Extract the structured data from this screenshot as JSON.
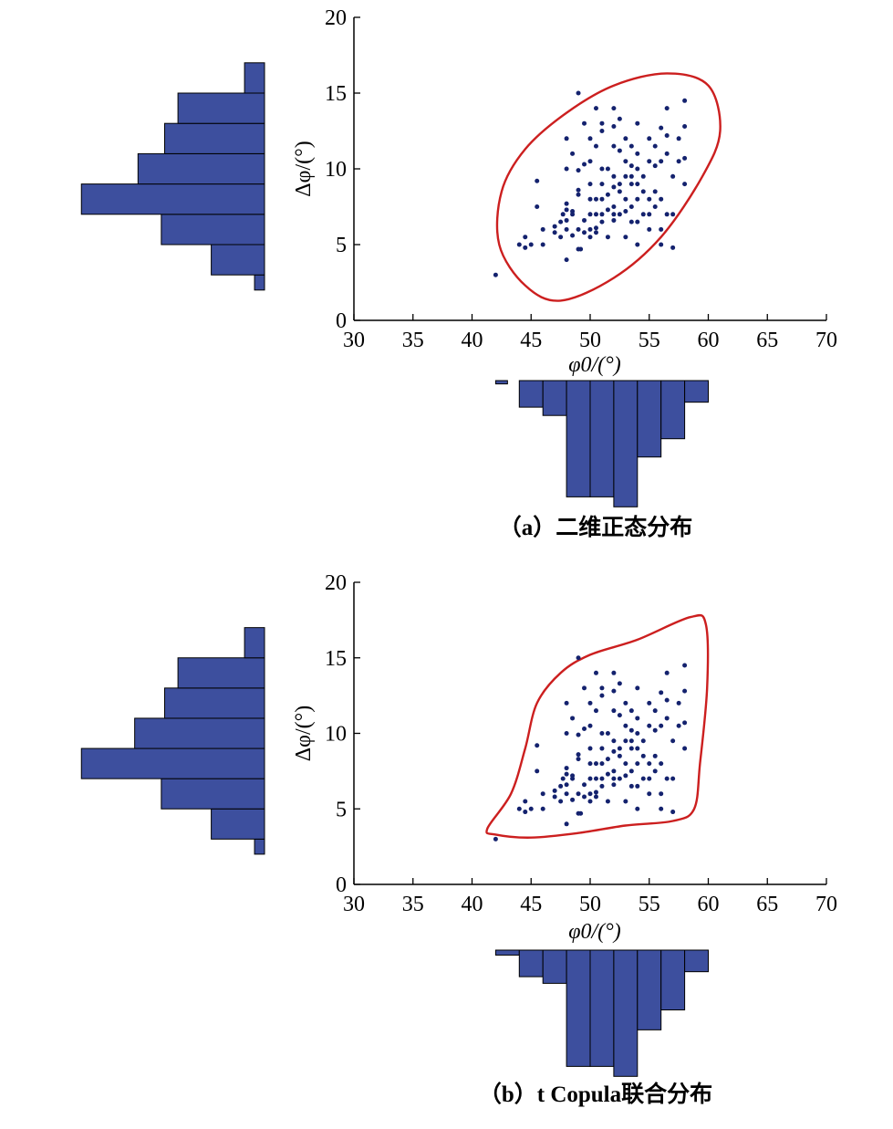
{
  "colors": {
    "bar": "#3d4f9e",
    "point": "#14226e",
    "contour": "#cc1f1f",
    "axis": "#000000"
  },
  "chart_data": [
    {
      "type": "scatter",
      "caption": "（a）二维正态分布",
      "xlabel": "φ0/(°)",
      "ylabel": "Δφ/(°)",
      "xlim": [
        30,
        70
      ],
      "ylim": [
        0,
        20
      ],
      "xticks": [
        "30",
        "35",
        "40",
        "45",
        "50",
        "55",
        "60",
        "65",
        "70"
      ],
      "yticks": [
        "0",
        "5",
        "10",
        "15",
        "20"
      ],
      "contour": "ellipse",
      "contour_points": [
        [
          47.5,
          1.3
        ],
        [
          52,
          2.8
        ],
        [
          56,
          5.5
        ],
        [
          59.5,
          9.5
        ],
        [
          61,
          12.5
        ],
        [
          60,
          15.5
        ],
        [
          56.5,
          16.3
        ],
        [
          52,
          15.5
        ],
        [
          48,
          13.7
        ],
        [
          44.5,
          11.3
        ],
        [
          42.5,
          8.5
        ],
        [
          42.3,
          5.0
        ],
        [
          44.5,
          2.3
        ]
      ],
      "x_hist": {
        "bins": [
          [
            42,
            43,
            0.2
          ],
          [
            44,
            46,
            1.6
          ],
          [
            46,
            48,
            2.1
          ],
          [
            48,
            50,
            7.0
          ],
          [
            50,
            52,
            7.0
          ],
          [
            52,
            54,
            7.6
          ],
          [
            54,
            56,
            4.6
          ],
          [
            56,
            58,
            3.5
          ],
          [
            58,
            60,
            1.3
          ]
        ]
      },
      "y_hist": {
        "bins": [
          [
            2,
            3,
            0.3
          ],
          [
            3,
            5,
            1.6
          ],
          [
            5,
            7,
            3.1
          ],
          [
            7,
            9,
            5.5
          ],
          [
            9,
            11,
            3.8
          ],
          [
            11,
            13,
            3.0
          ],
          [
            13,
            15,
            2.6
          ],
          [
            15,
            17,
            0.6
          ]
        ]
      },
      "points": [
        [
          42,
          3
        ],
        [
          44,
          5
        ],
        [
          44.5,
          4.8
        ],
        [
          44.5,
          5.5
        ],
        [
          45,
          5
        ],
        [
          45.5,
          7.5
        ],
        [
          45.5,
          9.2
        ],
        [
          46,
          5
        ],
        [
          46,
          6
        ],
        [
          47,
          5.8
        ],
        [
          47,
          6.2
        ],
        [
          47.5,
          5.5
        ],
        [
          47.5,
          6.5
        ],
        [
          47.7,
          7
        ],
        [
          48,
          4
        ],
        [
          48,
          6
        ],
        [
          48,
          6.6
        ],
        [
          48,
          7.3
        ],
        [
          48,
          7.7
        ],
        [
          48,
          10
        ],
        [
          48,
          12
        ],
        [
          48.5,
          5.6
        ],
        [
          48.5,
          7
        ],
        [
          48.5,
          7.2
        ],
        [
          48.5,
          11
        ],
        [
          49,
          4.7
        ],
        [
          49,
          6
        ],
        [
          49,
          8.3
        ],
        [
          49,
          8.6
        ],
        [
          49,
          9.9
        ],
        [
          49,
          15
        ],
        [
          49.2,
          4.7
        ],
        [
          49.5,
          5.8
        ],
        [
          49.5,
          6.6
        ],
        [
          49.5,
          10.3
        ],
        [
          49.5,
          13
        ],
        [
          50,
          5.5
        ],
        [
          50,
          6
        ],
        [
          50,
          7
        ],
        [
          50,
          8
        ],
        [
          50,
          9
        ],
        [
          50,
          10.5
        ],
        [
          50,
          12
        ],
        [
          50.5,
          5.8
        ],
        [
          50.5,
          6.1
        ],
        [
          50.5,
          7
        ],
        [
          50.5,
          8
        ],
        [
          50.5,
          11.5
        ],
        [
          50.5,
          14
        ],
        [
          51,
          6.5
        ],
        [
          51,
          7
        ],
        [
          51,
          8
        ],
        [
          51,
          9
        ],
        [
          51,
          10
        ],
        [
          51,
          12.5
        ],
        [
          51,
          13
        ],
        [
          51.5,
          5.5
        ],
        [
          51.5,
          7.3
        ],
        [
          51.5,
          8.3
        ],
        [
          51.5,
          10
        ],
        [
          52,
          6.6
        ],
        [
          52,
          7
        ],
        [
          52,
          7.5
        ],
        [
          52,
          8.8
        ],
        [
          52,
          9.5
        ],
        [
          52,
          11.5
        ],
        [
          52,
          12.8
        ],
        [
          52,
          14
        ],
        [
          52.5,
          7
        ],
        [
          52.5,
          8.5
        ],
        [
          52.5,
          9
        ],
        [
          52.5,
          11.2
        ],
        [
          52.5,
          13.3
        ],
        [
          53,
          5.5
        ],
        [
          53,
          7.2
        ],
        [
          53,
          8
        ],
        [
          53,
          9.5
        ],
        [
          53,
          10.5
        ],
        [
          53,
          12
        ],
        [
          53.5,
          6.5
        ],
        [
          53.5,
          7.5
        ],
        [
          53.5,
          9
        ],
        [
          53.5,
          9.5
        ],
        [
          53.5,
          10.2
        ],
        [
          53.5,
          11.5
        ],
        [
          54,
          5
        ],
        [
          54,
          6.5
        ],
        [
          54,
          8
        ],
        [
          54,
          9
        ],
        [
          54,
          10
        ],
        [
          54,
          11
        ],
        [
          54,
          13
        ],
        [
          54.5,
          7
        ],
        [
          54.5,
          8.5
        ],
        [
          54.5,
          9.5
        ],
        [
          55,
          6
        ],
        [
          55,
          7
        ],
        [
          55,
          8
        ],
        [
          55,
          10.5
        ],
        [
          55,
          12
        ],
        [
          55.5,
          7.5
        ],
        [
          55.5,
          8.5
        ],
        [
          55.5,
          10.2
        ],
        [
          55.5,
          11.5
        ],
        [
          56,
          5
        ],
        [
          56,
          6
        ],
        [
          56,
          8
        ],
        [
          56,
          10.5
        ],
        [
          56,
          12.7
        ],
        [
          56.5,
          7
        ],
        [
          56.5,
          11
        ],
        [
          56.5,
          12.2
        ],
        [
          56.5,
          14
        ],
        [
          57,
          4.8
        ],
        [
          57,
          7
        ],
        [
          57,
          9.5
        ],
        [
          57.5,
          10.5
        ],
        [
          57.5,
          12
        ],
        [
          58,
          9
        ],
        [
          58,
          10.7
        ],
        [
          58,
          12.8
        ],
        [
          58,
          14.5
        ]
      ]
    },
    {
      "type": "scatter",
      "caption": "（b）t Copula联合分布",
      "xlabel": "φ0/(°)",
      "ylabel": "Δφ/(°)",
      "xlim": [
        30,
        70
      ],
      "ylim": [
        0,
        20
      ],
      "xticks": [
        "30",
        "35",
        "40",
        "45",
        "50",
        "55",
        "60",
        "65",
        "70"
      ],
      "yticks": [
        "0",
        "5",
        "10",
        "15",
        "20"
      ],
      "contour": "t-copula",
      "contour_points": [
        [
          41.3,
          3.7
        ],
        [
          42,
          3.3
        ],
        [
          45,
          3.1
        ],
        [
          49,
          3.4
        ],
        [
          53,
          3.9
        ],
        [
          57,
          4.2
        ],
        [
          58.8,
          5.0
        ],
        [
          59.3,
          8
        ],
        [
          59.9,
          13
        ],
        [
          59.8,
          17.2
        ],
        [
          58.5,
          17.7
        ],
        [
          54,
          16.2
        ],
        [
          50,
          15.2
        ],
        [
          47.5,
          14.0
        ],
        [
          45.5,
          12.0
        ],
        [
          44.5,
          9.0
        ],
        [
          43.3,
          6.0
        ]
      ],
      "x_hist": {
        "bins": [
          [
            42,
            44,
            0.3
          ],
          [
            44,
            46,
            1.6
          ],
          [
            46,
            48,
            2.0
          ],
          [
            48,
            50,
            7.0
          ],
          [
            50,
            52,
            7.0
          ],
          [
            52,
            54,
            7.6
          ],
          [
            54,
            56,
            4.8
          ],
          [
            56,
            58,
            3.6
          ],
          [
            58,
            60,
            1.3
          ]
        ]
      },
      "y_hist": {
        "bins": [
          [
            2,
            3,
            0.3
          ],
          [
            3,
            5,
            1.6
          ],
          [
            5,
            7,
            3.1
          ],
          [
            7,
            9,
            5.5
          ],
          [
            9,
            11,
            3.9
          ],
          [
            11,
            13,
            3.0
          ],
          [
            13,
            15,
            2.6
          ],
          [
            15,
            17,
            0.6
          ]
        ]
      },
      "points": [
        [
          42,
          3
        ],
        [
          44,
          5
        ],
        [
          44.5,
          4.8
        ],
        [
          44.5,
          5.5
        ],
        [
          45,
          5
        ],
        [
          45.5,
          7.5
        ],
        [
          45.5,
          9.2
        ],
        [
          46,
          5
        ],
        [
          46,
          6
        ],
        [
          47,
          5.8
        ],
        [
          47,
          6.2
        ],
        [
          47.5,
          5.5
        ],
        [
          47.5,
          6.5
        ],
        [
          47.7,
          7
        ],
        [
          48,
          4
        ],
        [
          48,
          6
        ],
        [
          48,
          6.6
        ],
        [
          48,
          7.3
        ],
        [
          48,
          7.7
        ],
        [
          48,
          10
        ],
        [
          48,
          12
        ],
        [
          48.5,
          5.6
        ],
        [
          48.5,
          7
        ],
        [
          48.5,
          7.2
        ],
        [
          48.5,
          11
        ],
        [
          49,
          4.7
        ],
        [
          49,
          6
        ],
        [
          49,
          8.3
        ],
        [
          49,
          8.6
        ],
        [
          49,
          9.9
        ],
        [
          49,
          15
        ],
        [
          49.2,
          4.7
        ],
        [
          49.5,
          5.8
        ],
        [
          49.5,
          6.6
        ],
        [
          49.5,
          10.3
        ],
        [
          49.5,
          13
        ],
        [
          50,
          5.5
        ],
        [
          50,
          6
        ],
        [
          50,
          7
        ],
        [
          50,
          8
        ],
        [
          50,
          9
        ],
        [
          50,
          10.5
        ],
        [
          50,
          12
        ],
        [
          50.5,
          5.8
        ],
        [
          50.5,
          6.1
        ],
        [
          50.5,
          7
        ],
        [
          50.5,
          8
        ],
        [
          50.5,
          11.5
        ],
        [
          50.5,
          14
        ],
        [
          51,
          6.5
        ],
        [
          51,
          7
        ],
        [
          51,
          8
        ],
        [
          51,
          9
        ],
        [
          51,
          10
        ],
        [
          51,
          12.5
        ],
        [
          51,
          13
        ],
        [
          51.5,
          5.5
        ],
        [
          51.5,
          7.3
        ],
        [
          51.5,
          8.3
        ],
        [
          51.5,
          10
        ],
        [
          52,
          6.6
        ],
        [
          52,
          7
        ],
        [
          52,
          7.5
        ],
        [
          52,
          8.8
        ],
        [
          52,
          9.5
        ],
        [
          52,
          11.5
        ],
        [
          52,
          12.8
        ],
        [
          52,
          14
        ],
        [
          52.5,
          7
        ],
        [
          52.5,
          8.5
        ],
        [
          52.5,
          9
        ],
        [
          52.5,
          11.2
        ],
        [
          52.5,
          13.3
        ],
        [
          53,
          5.5
        ],
        [
          53,
          7.2
        ],
        [
          53,
          8
        ],
        [
          53,
          9.5
        ],
        [
          53,
          10.5
        ],
        [
          53,
          12
        ],
        [
          53.5,
          6.5
        ],
        [
          53.5,
          7.5
        ],
        [
          53.5,
          9
        ],
        [
          53.5,
          9.5
        ],
        [
          53.5,
          10.2
        ],
        [
          53.5,
          11.5
        ],
        [
          54,
          5
        ],
        [
          54,
          6.5
        ],
        [
          54,
          8
        ],
        [
          54,
          9
        ],
        [
          54,
          10
        ],
        [
          54,
          11
        ],
        [
          54,
          13
        ],
        [
          54.5,
          7
        ],
        [
          54.5,
          8.5
        ],
        [
          54.5,
          9.5
        ],
        [
          55,
          6
        ],
        [
          55,
          7
        ],
        [
          55,
          8
        ],
        [
          55,
          10.5
        ],
        [
          55,
          12
        ],
        [
          55.5,
          7.5
        ],
        [
          55.5,
          8.5
        ],
        [
          55.5,
          10.2
        ],
        [
          55.5,
          11.5
        ],
        [
          56,
          5
        ],
        [
          56,
          6
        ],
        [
          56,
          8
        ],
        [
          56,
          10.5
        ],
        [
          56,
          12.7
        ],
        [
          56.5,
          7
        ],
        [
          56.5,
          11
        ],
        [
          56.5,
          12.2
        ],
        [
          56.5,
          14
        ],
        [
          57,
          4.8
        ],
        [
          57,
          7
        ],
        [
          57,
          9.5
        ],
        [
          57.5,
          10.5
        ],
        [
          57.5,
          12
        ],
        [
          58,
          9
        ],
        [
          58,
          10.7
        ],
        [
          58,
          12.8
        ],
        [
          58,
          14.5
        ]
      ]
    }
  ]
}
